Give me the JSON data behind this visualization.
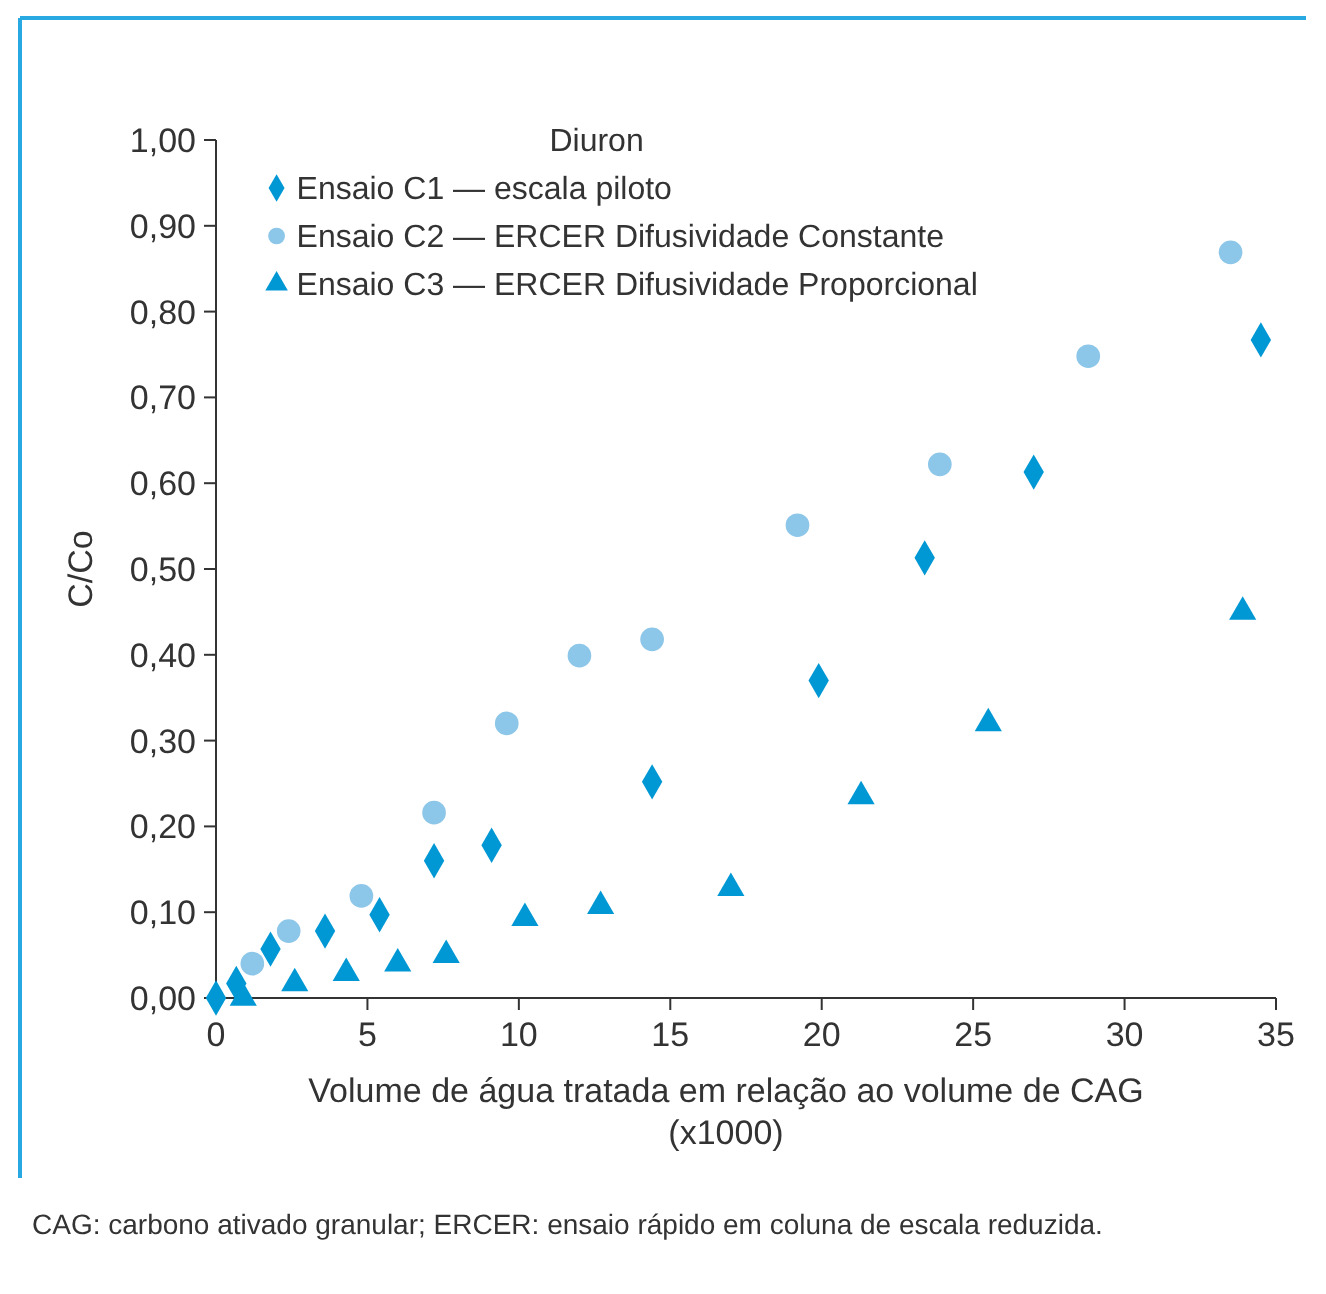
{
  "chart_data": {
    "type": "scatter",
    "xlabel": "Volume de água tratada em relação ao volume de CAG (x1000)",
    "ylabel": "C/Co",
    "legend_title": "Diuron",
    "legend": "top",
    "grid": false,
    "xlim": [
      0,
      35
    ],
    "xticks": [
      0,
      5,
      10,
      15,
      20,
      25,
      30,
      35
    ],
    "ylim": [
      0,
      1
    ],
    "yticks": [
      {
        "value": 0,
        "label": "0,00"
      },
      {
        "value": 0.1,
        "label": "0,10"
      },
      {
        "value": 0.2,
        "label": "0,20"
      },
      {
        "value": 0.3,
        "label": "0,30"
      },
      {
        "value": 0.4,
        "label": "0,40"
      },
      {
        "value": 0.5,
        "label": "0,50"
      },
      {
        "value": 0.6,
        "label": "0,60"
      },
      {
        "value": 0.7,
        "label": "0,70"
      },
      {
        "value": 0.8,
        "label": "0,80"
      },
      {
        "value": 0.9,
        "label": "0,90"
      },
      {
        "value": 1,
        "label": "1,00"
      }
    ],
    "series": [
      {
        "name": "Ensaio C1 — escala piloto",
        "color": "#0098d4",
        "marker": "diamond",
        "x": [
          0,
          0.67,
          1.8,
          3.6,
          5.4,
          7.2,
          9.1,
          14.4,
          19.9,
          23.4,
          27.0,
          34.5
        ],
        "values": [
          0,
          0.017,
          0.057,
          0.078,
          0.097,
          0.16,
          0.178,
          0.252,
          0.37,
          0.513,
          0.613,
          0.767
        ]
      },
      {
        "name": "Ensaio C2 — ERCER Difusividade Constante",
        "color": "#8cc6e8",
        "marker": "circle",
        "x": [
          1.2,
          2.4,
          4.8,
          7.2,
          9.6,
          12.0,
          14.4,
          19.2,
          23.9,
          28.8,
          33.5
        ],
        "values": [
          0.04,
          0.078,
          0.119,
          0.216,
          0.32,
          0.399,
          0.418,
          0.551,
          0.622,
          0.748,
          0.869
        ]
      },
      {
        "name": "Ensaio C3 — ERCER Difusividade Proporcional",
        "color": "#0098d4",
        "marker": "triangle",
        "x": [
          0.9,
          2.6,
          4.3,
          6.0,
          7.6,
          10.2,
          12.7,
          17.0,
          21.3,
          25.5,
          33.9
        ],
        "values": [
          0,
          0.017,
          0.029,
          0.04,
          0.05,
          0.093,
          0.107,
          0.128,
          0.235,
          0.32,
          0.45
        ]
      }
    ],
    "annotations": [
      "CAG: carbono ativado granular; ERCER: ensaio rápido em coluna de escala reduzida."
    ]
  }
}
